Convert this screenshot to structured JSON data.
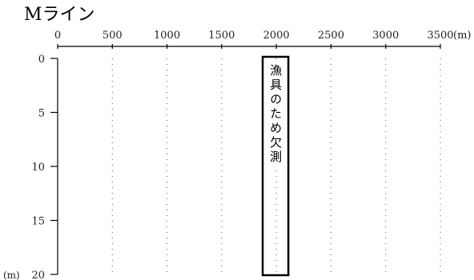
{
  "chart_data": {
    "type": "line",
    "title": "Mライン",
    "xlabel": "(m)",
    "ylabel": "(m)",
    "xlim": [
      0,
      3500
    ],
    "ylim": [
      0,
      20
    ],
    "y_inverted": true,
    "x_axis_position": "top",
    "x_ticks": [
      0,
      500,
      1000,
      1500,
      2000,
      2500,
      3000,
      3500
    ],
    "x_tick_labels": [
      "0",
      "500",
      "1000",
      "1500",
      "2000",
      "2500",
      "3000",
      "3500"
    ],
    "y_ticks": [
      0,
      5,
      10,
      15,
      20
    ],
    "y_tick_labels": [
      "0",
      "5",
      "10",
      "15",
      "20"
    ],
    "grid": true,
    "series": [],
    "annotations": [
      {
        "text": "漁具のため欠測",
        "x_range": [
          1875,
          2110
        ],
        "y_range": [
          0,
          20
        ]
      }
    ],
    "colors": {
      "axis": "#000000",
      "grid": "#555555",
      "background": "#ffffff"
    }
  }
}
